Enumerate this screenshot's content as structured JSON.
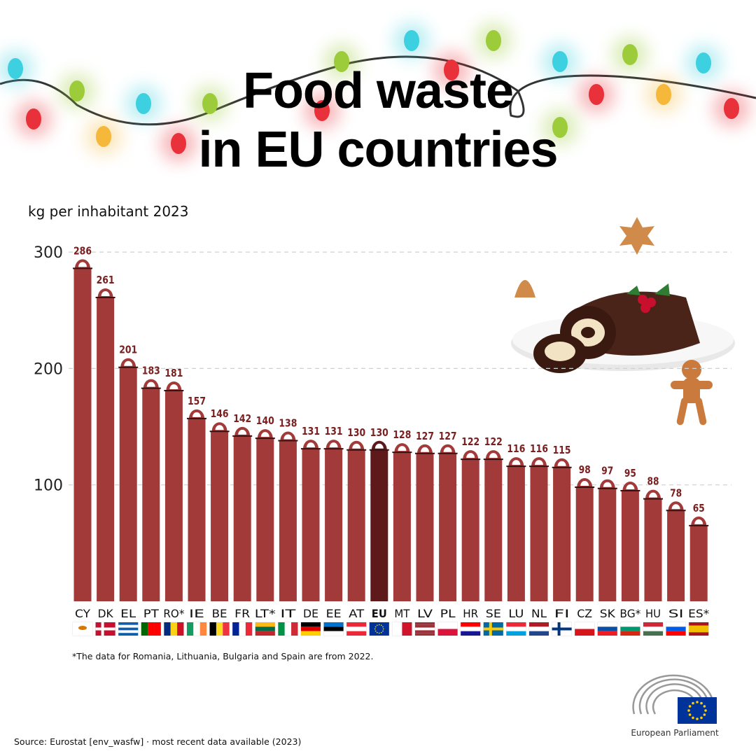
{
  "title_line1": "Food waste",
  "title_line2": "in EU countries",
  "footnote": "*The data for Romania, Lithuania, Bulgaria and Spain are from 2022.",
  "source": "Source: Eurostat [env_wasfw] · most recent data available (2023)",
  "logo": {
    "name": "European Parliament"
  },
  "colors": {
    "bar": "#a33a3a",
    "eu_bar": "#5e1a1a",
    "label": "#7a2020",
    "grid": "#d0d0d0"
  },
  "chart_data": {
    "type": "bar",
    "ylabel": "kg per inhabitant 2023",
    "ylim": [
      0,
      300
    ],
    "yticks": [
      "100",
      "200",
      "300"
    ],
    "ytick_values": [
      100,
      200,
      300
    ],
    "grid": "horizontal dashed",
    "categories": [
      "CY",
      "DK",
      "EL",
      "PT",
      "RO*",
      "IE",
      "BE",
      "FR",
      "LT*",
      "IT",
      "DE",
      "EE",
      "AT",
      "EU",
      "MT",
      "LV",
      "PL",
      "HR",
      "SE",
      "LU",
      "NL",
      "FI",
      "CZ",
      "SK",
      "BG*",
      "HU",
      "SI",
      "ES*"
    ],
    "values": [
      286,
      261,
      201,
      183,
      181,
      157,
      146,
      142,
      140,
      138,
      131,
      131,
      130,
      130,
      128,
      127,
      127,
      122,
      122,
      116,
      116,
      115,
      98,
      97,
      95,
      88,
      78,
      65
    ],
    "value_labels": [
      "286",
      "261",
      "201",
      "183",
      "181",
      "157",
      "146",
      "142",
      "140",
      "138",
      "131",
      "131",
      "130",
      "130",
      "128",
      "127",
      "127",
      "122",
      "122",
      "116",
      "116",
      "115",
      "98",
      "97",
      "95",
      "88",
      "78",
      "65"
    ],
    "highlight": "EU"
  },
  "flags": [
    {
      "t": "s",
      "c": [
        "#ffffff"
      ],
      "d": "h"
    },
    {
      "t": "x",
      "c": [
        "#c8102e",
        "#ffffff"
      ]
    },
    {
      "t": "s",
      "c": [
        "#0d5eaf",
        "#ffffff",
        "#0d5eaf",
        "#ffffff",
        "#0d5eaf"
      ],
      "d": "h"
    },
    {
      "t": "s",
      "c": [
        "#006600",
        "#ff0000",
        "#ff0000"
      ],
      "d": "v"
    },
    {
      "t": "s",
      "c": [
        "#002b7f",
        "#fcd116",
        "#ce1126"
      ],
      "d": "v"
    },
    {
      "t": "s",
      "c": [
        "#169b62",
        "#ffffff",
        "#ff883e"
      ],
      "d": "v"
    },
    {
      "t": "s",
      "c": [
        "#000000",
        "#fdda24",
        "#ef3340"
      ],
      "d": "v"
    },
    {
      "t": "s",
      "c": [
        "#002395",
        "#ffffff",
        "#ed2939"
      ],
      "d": "v"
    },
    {
      "t": "s",
      "c": [
        "#fdb913",
        "#006a44",
        "#c1272d"
      ],
      "d": "h"
    },
    {
      "t": "s",
      "c": [
        "#009246",
        "#ffffff",
        "#ce2b37"
      ],
      "d": "v"
    },
    {
      "t": "s",
      "c": [
        "#000000",
        "#dd0000",
        "#ffce00"
      ],
      "d": "h"
    },
    {
      "t": "s",
      "c": [
        "#0072ce",
        "#000000",
        "#ffffff"
      ],
      "d": "h"
    },
    {
      "t": "s",
      "c": [
        "#ed2939",
        "#ffffff",
        "#ed2939"
      ],
      "d": "h"
    },
    {
      "t": "s",
      "c": [
        "#003399"
      ],
      "d": "h"
    },
    {
      "t": "s",
      "c": [
        "#ffffff",
        "#cf142b"
      ],
      "d": "v"
    },
    {
      "t": "s",
      "c": [
        "#9e3039",
        "#9e3039",
        "#ffffff",
        "#9e3039",
        "#9e3039"
      ],
      "d": "h"
    },
    {
      "t": "s",
      "c": [
        "#ffffff",
        "#dc143c"
      ],
      "d": "h"
    },
    {
      "t": "s",
      "c": [
        "#ff0000",
        "#ffffff",
        "#171796"
      ],
      "d": "h"
    },
    {
      "t": "x",
      "c": [
        "#006aa7",
        "#fecc00"
      ]
    },
    {
      "t": "s",
      "c": [
        "#ed2939",
        "#ffffff",
        "#00a1de"
      ],
      "d": "h"
    },
    {
      "t": "s",
      "c": [
        "#ae1c28",
        "#ffffff",
        "#21468b"
      ],
      "d": "h"
    },
    {
      "t": "x",
      "c": [
        "#ffffff",
        "#003580"
      ]
    },
    {
      "t": "s",
      "c": [
        "#ffffff",
        "#d7141a"
      ],
      "d": "h"
    },
    {
      "t": "s",
      "c": [
        "#ffffff",
        "#0b4ea2",
        "#ee1c25"
      ],
      "d": "h"
    },
    {
      "t": "s",
      "c": [
        "#ffffff",
        "#00966e",
        "#d62612"
      ],
      "d": "h"
    },
    {
      "t": "s",
      "c": [
        "#ce2939",
        "#ffffff",
        "#477050"
      ],
      "d": "h"
    },
    {
      "t": "s",
      "c": [
        "#ffffff",
        "#005ce5",
        "#ff0000"
      ],
      "d": "h"
    },
    {
      "t": "s",
      "c": [
        "#aa151b",
        "#f1bf00",
        "#f1bf00",
        "#aa151b"
      ],
      "d": "h"
    }
  ]
}
